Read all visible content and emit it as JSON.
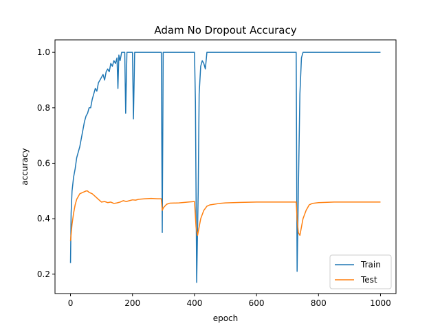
{
  "chart_data": {
    "type": "line",
    "title": "Adam No Dropout Accuracy",
    "xlabel": "epoch",
    "ylabel": "accuracy",
    "xlim": [
      -50,
      1050
    ],
    "ylim": [
      0.13,
      1.045
    ],
    "xticks": [
      0,
      200,
      400,
      600,
      800,
      1000
    ],
    "xtick_labels": [
      "0",
      "200",
      "400",
      "600",
      "800",
      "1000"
    ],
    "yticks": [
      0.2,
      0.4,
      0.6,
      0.8,
      1.0
    ],
    "ytick_labels": [
      "0.2",
      "0.4",
      "0.6",
      "0.8",
      "1.0"
    ],
    "grid": false,
    "legend_position": "lower-right",
    "series": [
      {
        "name": "Train",
        "color": "#1f77b4",
        "points": [
          [
            0,
            0.24
          ],
          [
            2,
            0.42
          ],
          [
            5,
            0.5
          ],
          [
            10,
            0.55
          ],
          [
            15,
            0.58
          ],
          [
            20,
            0.62
          ],
          [
            25,
            0.64
          ],
          [
            30,
            0.66
          ],
          [
            35,
            0.69
          ],
          [
            40,
            0.72
          ],
          [
            45,
            0.75
          ],
          [
            50,
            0.77
          ],
          [
            55,
            0.78
          ],
          [
            60,
            0.8
          ],
          [
            65,
            0.8
          ],
          [
            70,
            0.83
          ],
          [
            75,
            0.85
          ],
          [
            80,
            0.87
          ],
          [
            85,
            0.86
          ],
          [
            90,
            0.89
          ],
          [
            95,
            0.9
          ],
          [
            100,
            0.91
          ],
          [
            105,
            0.92
          ],
          [
            110,
            0.9
          ],
          [
            115,
            0.93
          ],
          [
            120,
            0.94
          ],
          [
            125,
            0.93
          ],
          [
            130,
            0.96
          ],
          [
            135,
            0.95
          ],
          [
            140,
            0.97
          ],
          [
            145,
            0.96
          ],
          [
            150,
            0.98
          ],
          [
            153,
            0.87
          ],
          [
            156,
            0.99
          ],
          [
            160,
            0.97
          ],
          [
            165,
            1.0
          ],
          [
            170,
            1.0
          ],
          [
            175,
            1.0
          ],
          [
            178,
            0.78
          ],
          [
            182,
            1.0
          ],
          [
            190,
            1.0
          ],
          [
            200,
            1.0
          ],
          [
            203,
            0.76
          ],
          [
            207,
            1.0
          ],
          [
            220,
            1.0
          ],
          [
            250,
            1.0
          ],
          [
            280,
            1.0
          ],
          [
            293,
            1.0
          ],
          [
            296,
            0.35
          ],
          [
            299,
            1.0
          ],
          [
            310,
            1.0
          ],
          [
            350,
            1.0
          ],
          [
            400,
            1.0
          ],
          [
            403,
            0.82
          ],
          [
            407,
            0.17
          ],
          [
            412,
            0.5
          ],
          [
            415,
            0.85
          ],
          [
            420,
            0.95
          ],
          [
            425,
            0.97
          ],
          [
            430,
            0.96
          ],
          [
            435,
            0.94
          ],
          [
            440,
            1.0
          ],
          [
            450,
            1.0
          ],
          [
            500,
            1.0
          ],
          [
            600,
            1.0
          ],
          [
            700,
            1.0
          ],
          [
            728,
            1.0
          ],
          [
            731,
            0.21
          ],
          [
            735,
            0.5
          ],
          [
            740,
            0.85
          ],
          [
            745,
            0.98
          ],
          [
            750,
            1.0
          ],
          [
            800,
            1.0
          ],
          [
            900,
            1.0
          ],
          [
            1000,
            1.0
          ]
        ]
      },
      {
        "name": "Test",
        "color": "#ff7f0e",
        "points": [
          [
            0,
            0.32
          ],
          [
            5,
            0.38
          ],
          [
            10,
            0.42
          ],
          [
            15,
            0.45
          ],
          [
            20,
            0.47
          ],
          [
            25,
            0.48
          ],
          [
            30,
            0.49
          ],
          [
            40,
            0.495
          ],
          [
            50,
            0.5
          ],
          [
            55,
            0.5
          ],
          [
            60,
            0.495
          ],
          [
            70,
            0.49
          ],
          [
            80,
            0.48
          ],
          [
            90,
            0.47
          ],
          [
            100,
            0.46
          ],
          [
            110,
            0.462
          ],
          [
            120,
            0.458
          ],
          [
            130,
            0.46
          ],
          [
            140,
            0.455
          ],
          [
            150,
            0.457
          ],
          [
            160,
            0.46
          ],
          [
            170,
            0.465
          ],
          [
            180,
            0.462
          ],
          [
            190,
            0.465
          ],
          [
            200,
            0.468
          ],
          [
            210,
            0.467
          ],
          [
            220,
            0.47
          ],
          [
            240,
            0.472
          ],
          [
            260,
            0.473
          ],
          [
            280,
            0.472
          ],
          [
            293,
            0.472
          ],
          [
            296,
            0.43
          ],
          [
            300,
            0.44
          ],
          [
            310,
            0.452
          ],
          [
            320,
            0.456
          ],
          [
            350,
            0.457
          ],
          [
            380,
            0.46
          ],
          [
            400,
            0.462
          ],
          [
            405,
            0.37
          ],
          [
            410,
            0.34
          ],
          [
            415,
            0.37
          ],
          [
            420,
            0.4
          ],
          [
            430,
            0.43
          ],
          [
            440,
            0.445
          ],
          [
            450,
            0.45
          ],
          [
            480,
            0.455
          ],
          [
            500,
            0.457
          ],
          [
            550,
            0.459
          ],
          [
            600,
            0.46
          ],
          [
            650,
            0.46
          ],
          [
            700,
            0.46
          ],
          [
            728,
            0.46
          ],
          [
            731,
            0.4
          ],
          [
            735,
            0.35
          ],
          [
            740,
            0.34
          ],
          [
            745,
            0.37
          ],
          [
            750,
            0.4
          ],
          [
            760,
            0.43
          ],
          [
            770,
            0.45
          ],
          [
            780,
            0.455
          ],
          [
            800,
            0.458
          ],
          [
            850,
            0.46
          ],
          [
            900,
            0.46
          ],
          [
            950,
            0.46
          ],
          [
            1000,
            0.46
          ]
        ]
      }
    ]
  }
}
